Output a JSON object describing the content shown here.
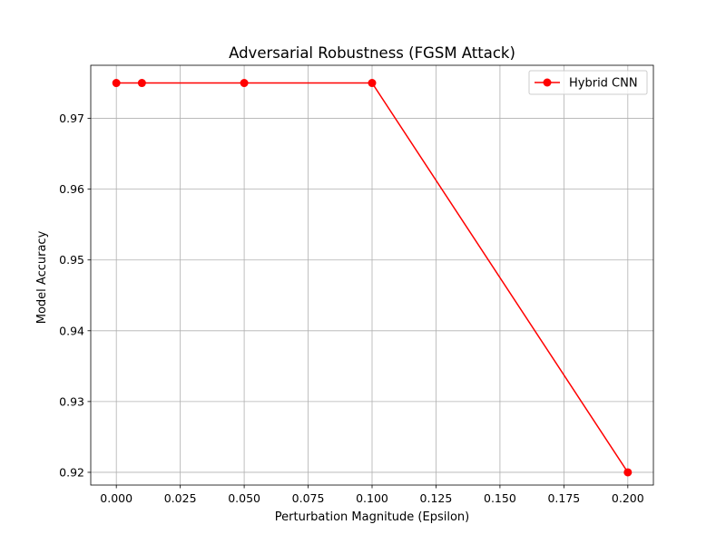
{
  "chart_data": {
    "type": "line",
    "title": "Adversarial Robustness (FGSM Attack)",
    "xlabel": "Perturbation Magnitude (Epsilon)",
    "ylabel": "Model Accuracy",
    "xlim": [
      -0.01,
      0.21
    ],
    "ylim": [
      0.9182,
      0.9775
    ],
    "xticks": [
      0.0,
      0.025,
      0.05,
      0.075,
      0.1,
      0.125,
      0.15,
      0.175,
      0.2
    ],
    "xtick_labels": [
      "0.000",
      "0.025",
      "0.050",
      "0.075",
      "0.100",
      "0.125",
      "0.150",
      "0.175",
      "0.200"
    ],
    "yticks": [
      0.92,
      0.93,
      0.94,
      0.95,
      0.96,
      0.97
    ],
    "ytick_labels": [
      "0.92",
      "0.93",
      "0.94",
      "0.95",
      "0.96",
      "0.97"
    ],
    "grid": true,
    "legend_position": "top-right",
    "series": [
      {
        "name": "Hybrid CNN",
        "color": "#ff0000",
        "marker": "circle",
        "x": [
          0.0,
          0.01,
          0.05,
          0.1,
          0.2
        ],
        "y": [
          0.975,
          0.975,
          0.975,
          0.975,
          0.92
        ]
      }
    ]
  }
}
